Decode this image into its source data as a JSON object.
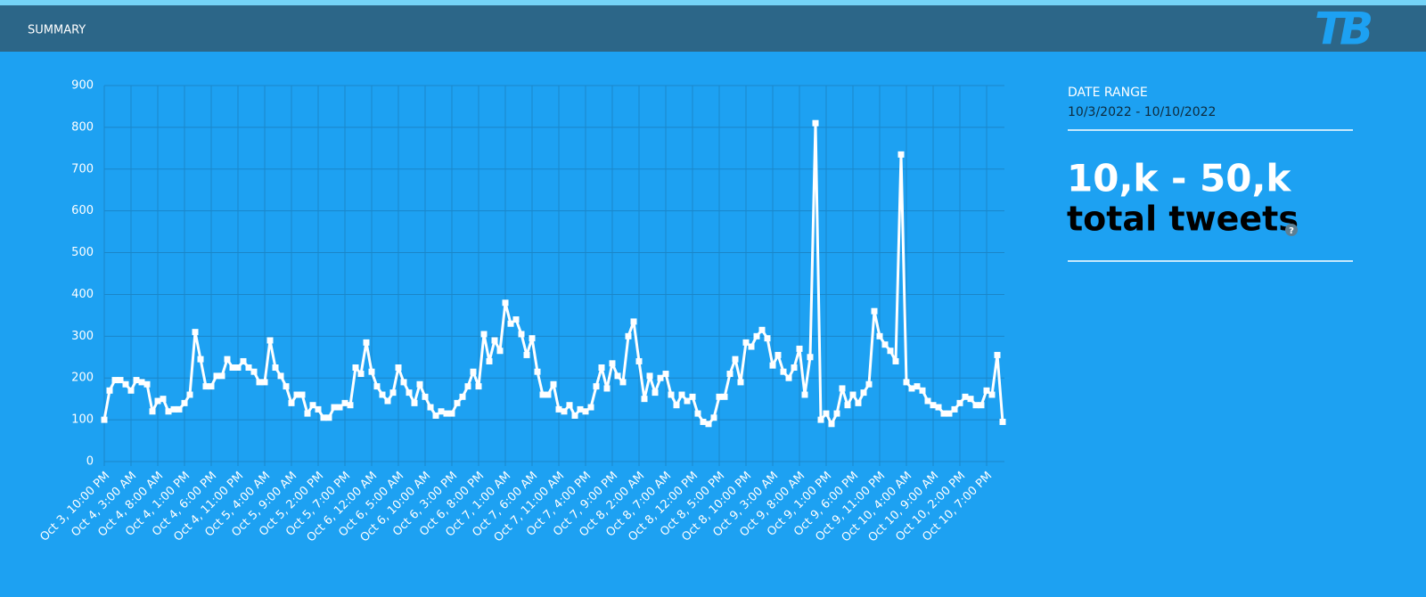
{
  "header": {
    "title": "SUMMARY",
    "logo": "TB"
  },
  "summary": {
    "date_range_label": "DATE RANGE",
    "date_range": "10/3/2022 - 10/10/2022",
    "total": "10,k - 50,k",
    "total_label": "total tweets",
    "help": "?"
  },
  "chart_data": {
    "type": "line",
    "color": "#ffffff",
    "grid": true,
    "ylim": [
      0,
      900
    ],
    "yticks": [
      0,
      100,
      200,
      300,
      400,
      500,
      600,
      700,
      800,
      900
    ],
    "categories": [
      "Oct 3, 10:00 PM",
      null,
      null,
      null,
      null,
      "Oct 4, 3:00 AM",
      null,
      null,
      null,
      null,
      "Oct 4, 8:00 AM",
      null,
      null,
      null,
      null,
      "Oct 4, 1:00 PM",
      null,
      null,
      null,
      null,
      "Oct 4, 6:00 PM",
      null,
      null,
      null,
      null,
      "Oct 4, 11:00 PM",
      null,
      null,
      null,
      null,
      "Oct 5, 4:00 AM",
      null,
      null,
      null,
      null,
      "Oct 5, 9:00 AM",
      null,
      null,
      null,
      null,
      "Oct 5, 2:00 PM",
      null,
      null,
      null,
      null,
      "Oct 5, 7:00 PM",
      null,
      null,
      null,
      null,
      "Oct 6, 12:00 AM",
      null,
      null,
      null,
      null,
      "Oct 6, 5:00 AM",
      null,
      null,
      null,
      null,
      "Oct 6, 10:00 AM",
      null,
      null,
      null,
      null,
      "Oct 6, 3:00 PM",
      null,
      null,
      null,
      null,
      "Oct 6, 8:00 PM",
      null,
      null,
      null,
      null,
      "Oct 7, 1:00 AM",
      null,
      null,
      null,
      null,
      "Oct 7, 6:00 AM",
      null,
      null,
      null,
      null,
      "Oct 7, 11:00 AM",
      null,
      null,
      null,
      null,
      "Oct 7, 4:00 PM",
      null,
      null,
      null,
      null,
      "Oct 7, 9:00 PM",
      null,
      null,
      null,
      null,
      "Oct 8, 2:00 AM",
      null,
      null,
      null,
      null,
      "Oct 8, 7:00 AM",
      null,
      null,
      null,
      null,
      "Oct 8, 12:00 PM",
      null,
      null,
      null,
      null,
      "Oct 8, 5:00 PM",
      null,
      null,
      null,
      null,
      "Oct 8, 10:00 PM",
      null,
      null,
      null,
      null,
      "Oct 9, 3:00 AM",
      null,
      null,
      null,
      null,
      "Oct 9, 8:00 AM",
      null,
      null,
      null,
      null,
      "Oct 9, 1:00 PM",
      null,
      null,
      null,
      null,
      "Oct 9, 6:00 PM",
      null,
      null,
      null,
      null,
      "Oct 9, 11:00 PM",
      null,
      null,
      null,
      null,
      "Oct 10, 4:00 AM",
      null,
      null,
      null,
      null,
      "Oct 10, 9:00 AM",
      null,
      null,
      null,
      null,
      "Oct 10, 2:00 PM",
      null,
      null,
      null,
      null,
      "Oct 10, 7:00 PM",
      null,
      null,
      null
    ],
    "values": [
      100,
      170,
      195,
      195,
      185,
      170,
      195,
      190,
      185,
      120,
      145,
      150,
      120,
      125,
      125,
      140,
      160,
      310,
      245,
      180,
      180,
      205,
      205,
      245,
      225,
      225,
      240,
      225,
      215,
      190,
      190,
      290,
      225,
      205,
      180,
      140,
      160,
      160,
      115,
      135,
      125,
      105,
      105,
      130,
      130,
      140,
      135,
      225,
      210,
      285,
      215,
      180,
      160,
      145,
      165,
      225,
      190,
      165,
      140,
      185,
      155,
      130,
      110,
      120,
      115,
      115,
      140,
      155,
      180,
      215,
      180,
      305,
      240,
      290,
      265,
      380,
      330,
      340,
      305,
      255,
      295,
      215,
      160,
      160,
      185,
      125,
      120,
      135,
      110,
      125,
      120,
      130,
      180,
      225,
      175,
      235,
      205,
      190,
      300,
      335,
      240,
      150,
      205,
      165,
      200,
      210,
      160,
      135,
      160,
      145,
      155,
      115,
      95,
      90,
      105,
      155,
      155,
      210,
      245,
      190,
      285,
      275,
      300,
      315,
      295,
      230,
      255,
      215,
      200,
      225,
      270,
      160,
      250,
      810,
      100,
      115,
      90,
      115,
      175,
      135,
      160,
      140,
      165,
      185,
      360,
      300,
      280,
      265,
      240,
      735,
      190,
      175,
      180,
      170,
      145,
      135,
      130,
      115,
      115,
      125,
      140,
      155,
      150,
      135,
      135,
      170,
      160,
      255,
      95
    ]
  }
}
